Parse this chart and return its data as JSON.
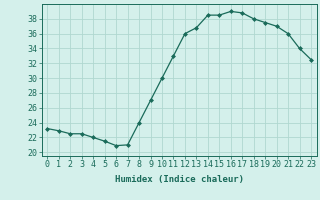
{
  "x": [
    0,
    1,
    2,
    3,
    4,
    5,
    6,
    7,
    8,
    9,
    10,
    11,
    12,
    13,
    14,
    15,
    16,
    17,
    18,
    19,
    20,
    21,
    22,
    23
  ],
  "y": [
    23.2,
    22.9,
    22.5,
    22.5,
    22.0,
    21.5,
    20.9,
    21.0,
    24.0,
    27.0,
    30.0,
    33.0,
    36.0,
    36.8,
    38.5,
    38.5,
    39.0,
    38.8,
    38.0,
    37.5,
    37.0,
    36.0,
    34.0,
    32.5
  ],
  "line_color": "#1a6b5a",
  "marker": "D",
  "marker_size": 2.0,
  "bg_color": "#d4f0eb",
  "grid_color": "#b0d8d0",
  "xlabel": "Humidex (Indice chaleur)",
  "ylabel_ticks": [
    20,
    22,
    24,
    26,
    28,
    30,
    32,
    34,
    36,
    38
  ],
  "xlim": [
    -0.5,
    23.5
  ],
  "ylim": [
    19.5,
    40.0
  ],
  "xtick_labels": [
    "0",
    "1",
    "2",
    "3",
    "4",
    "5",
    "6",
    "7",
    "8",
    "9",
    "10",
    "11",
    "12",
    "13",
    "14",
    "15",
    "16",
    "17",
    "18",
    "19",
    "20",
    "21",
    "22",
    "23"
  ],
  "label_fontsize": 6.5,
  "tick_fontsize": 6.0
}
